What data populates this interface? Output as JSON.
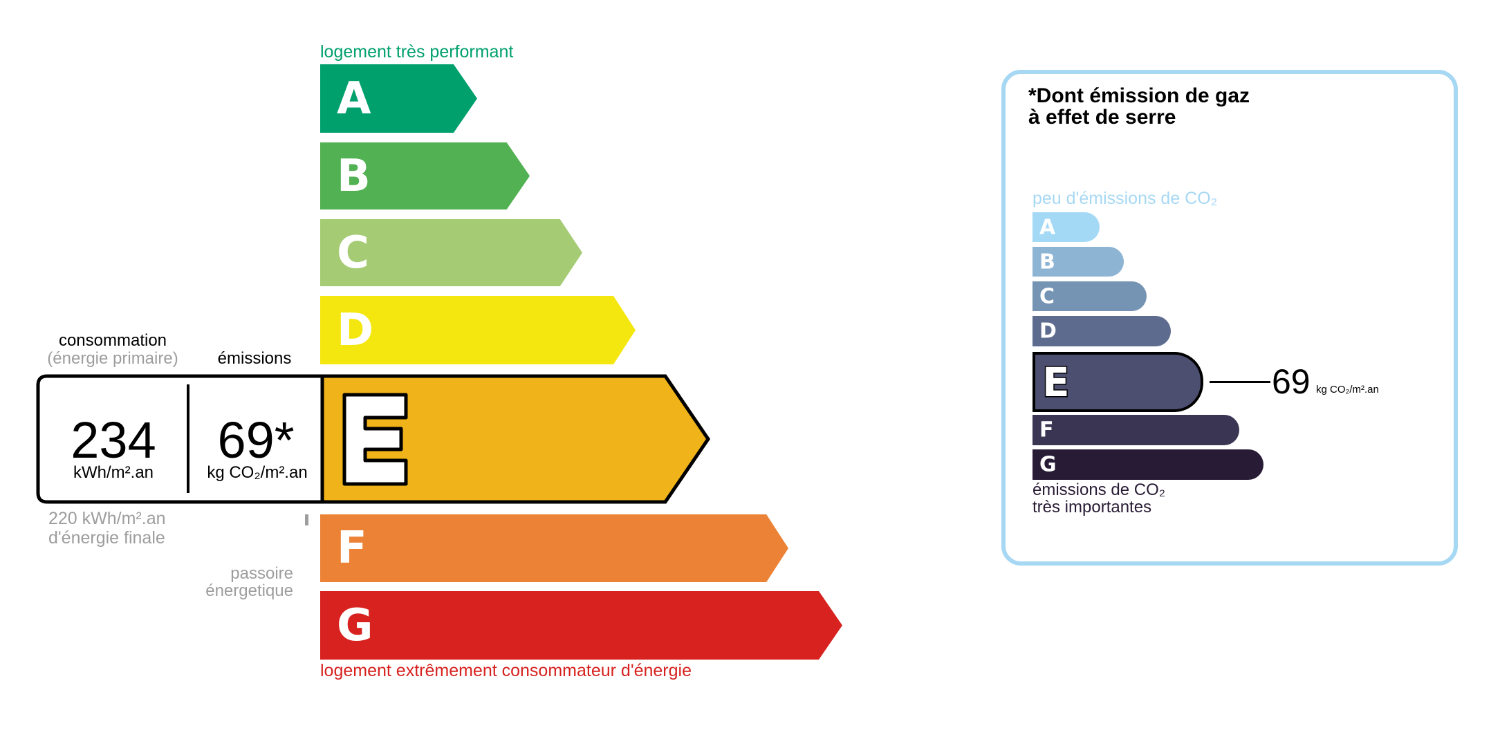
{
  "energy_label": {
    "top_caption": "logement très performant",
    "bottom_caption": "logement extrêmement consommateur d'énergie",
    "classes": [
      {
        "letter": "A",
        "color": "#00a06d"
      },
      {
        "letter": "B",
        "color": "#52b153"
      },
      {
        "letter": "C",
        "color": "#a5cc74"
      },
      {
        "letter": "D",
        "color": "#f4e70f"
      },
      {
        "letter": "E",
        "color": "#f0b41a"
      },
      {
        "letter": "F",
        "color": "#ec8235"
      },
      {
        "letter": "G",
        "color": "#d7221f"
      }
    ],
    "current_class": "E",
    "consumption_label": "consommation",
    "consumption_sublabel": "(énergie primaire)",
    "emissions_label": "émissions",
    "consumption_value": "234",
    "consumption_unit": "kWh/m².an",
    "emissions_value": "69*",
    "emissions_unit": "kg CO₂/m².an",
    "final_energy_line1": "220 kWh/m².an",
    "final_energy_line2": "d'énergie finale",
    "passoire_line1": "passoire",
    "passoire_line2": "énergetique"
  },
  "ghg_label": {
    "title_line1": "*Dont émission de gaz",
    "title_line2": "à effet de serre",
    "top_caption": "peu d'émissions de CO₂",
    "bottom_caption_line1": "émissions de CO₂",
    "bottom_caption_line2": "très importantes",
    "classes": [
      {
        "letter": "A",
        "color": "#a4d9f6"
      },
      {
        "letter": "B",
        "color": "#8eb4d4"
      },
      {
        "letter": "C",
        "color": "#7593b3"
      },
      {
        "letter": "D",
        "color": "#5d6b8e"
      },
      {
        "letter": "E",
        "color": "#4c4f6f"
      },
      {
        "letter": "F",
        "color": "#393552"
      },
      {
        "letter": "G",
        "color": "#281b35"
      }
    ],
    "current_class": "E",
    "value": "69",
    "unit": "kg CO₂/m².an",
    "border_color": "#a6d8f3"
  }
}
